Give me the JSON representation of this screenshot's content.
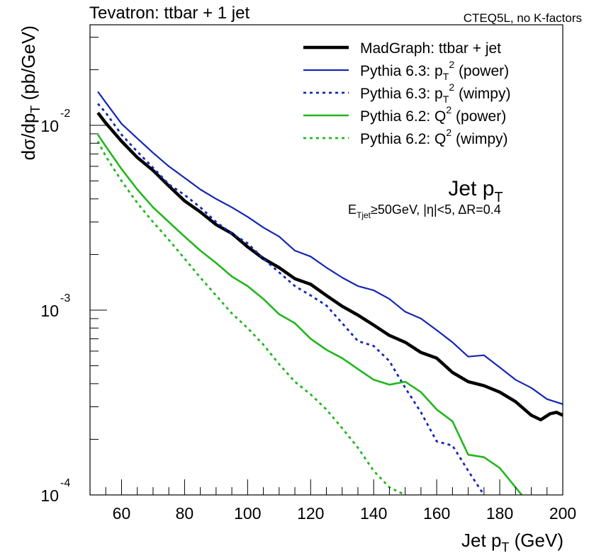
{
  "chart_data": {
    "type": "line",
    "title": "Tevatron: ttbar + 1 jet",
    "subtitle": "CTEQ5L, no K-factors",
    "xlabel": {
      "main": "Jet p",
      "sub": "T",
      "unit": " (GeV)"
    },
    "ylabel": {
      "main": "dσ/dp",
      "sub": "T",
      "unit": " (pb/GeV)"
    },
    "x_ticks": [
      60,
      80,
      100,
      120,
      140,
      160,
      180,
      200
    ],
    "y_ticks": [
      {
        "base": "10",
        "exp": "-2",
        "value": 0.01
      },
      {
        "base": "10",
        "exp": "-3",
        "value": 0.001
      },
      {
        "base": "10",
        "exp": "-4",
        "value": 0.0001
      }
    ],
    "xlim": [
      50,
      200
    ],
    "ylim": [
      0.0001,
      0.035
    ],
    "yscale": "log",
    "grid": false,
    "legend_position": "top-right",
    "annotation": {
      "title_main": "Jet p",
      "title_sub": "T",
      "cuts_E": "E",
      "cuts_E_sub": "Tjet",
      "cuts_rest": "≥50GeV, |η|<5, ΔR=0.4"
    },
    "series": [
      {
        "legend": [
          "MadGraph: ttbar + jet"
        ],
        "color": "#000000",
        "width": 4.5,
        "dash": "",
        "points": [
          [
            52.5,
            0.0117
          ],
          [
            55,
            0.0103
          ],
          [
            60,
            0.0082
          ],
          [
            65,
            0.0067
          ],
          [
            70,
            0.0057
          ],
          [
            75,
            0.0047
          ],
          [
            80,
            0.0039
          ],
          [
            85,
            0.0034
          ],
          [
            90,
            0.0029
          ],
          [
            95,
            0.0026
          ],
          [
            100,
            0.0022
          ],
          [
            105,
            0.0019
          ],
          [
            110,
            0.0017
          ],
          [
            115,
            0.00148
          ],
          [
            120,
            0.00138
          ],
          [
            125,
            0.0012
          ],
          [
            130,
            0.00105
          ],
          [
            135,
            0.00094
          ],
          [
            140,
            0.00083
          ],
          [
            145,
            0.00073
          ],
          [
            150,
            0.00067
          ],
          [
            155,
            0.00059
          ],
          [
            160,
            0.00055
          ],
          [
            165,
            0.00046
          ],
          [
            170,
            0.00041
          ],
          [
            175,
            0.00039
          ],
          [
            180,
            0.00036
          ],
          [
            185,
            0.00032
          ],
          [
            190,
            0.00027
          ],
          [
            193,
            0.000255
          ],
          [
            196,
            0.000275
          ],
          [
            198,
            0.00028
          ],
          [
            200,
            0.00027
          ]
        ]
      },
      {
        "legend": [
          "Pythia 6.3: p",
          "T",
          "2",
          " (power)"
        ],
        "color": "#1426b5",
        "width": 2.2,
        "dash": "",
        "points": [
          [
            52.5,
            0.0152
          ],
          [
            55,
            0.0133
          ],
          [
            60,
            0.0102
          ],
          [
            65,
            0.0085
          ],
          [
            70,
            0.0071
          ],
          [
            75,
            0.006
          ],
          [
            80,
            0.0052
          ],
          [
            85,
            0.0045
          ],
          [
            90,
            0.004
          ],
          [
            95,
            0.0036
          ],
          [
            100,
            0.0032
          ],
          [
            105,
            0.0028
          ],
          [
            110,
            0.0025
          ],
          [
            115,
            0.0021
          ],
          [
            120,
            0.00195
          ],
          [
            125,
            0.0017
          ],
          [
            130,
            0.0015
          ],
          [
            135,
            0.00135
          ],
          [
            140,
            0.00128
          ],
          [
            145,
            0.00115
          ],
          [
            150,
            0.00098
          ],
          [
            155,
            0.0009
          ],
          [
            160,
            0.00078
          ],
          [
            165,
            0.00067
          ],
          [
            170,
            0.00056
          ],
          [
            175,
            0.00057
          ],
          [
            180,
            0.00049
          ],
          [
            185,
            0.00042
          ],
          [
            190,
            0.00038
          ],
          [
            195,
            0.00033
          ],
          [
            200,
            0.00031
          ]
        ]
      },
      {
        "legend": [
          "Pythia 6.3: p",
          "T",
          "2",
          " (wimpy)"
        ],
        "color": "#1426b5",
        "width": 2.8,
        "dash": "4 5",
        "points": [
          [
            52.5,
            0.0131
          ],
          [
            55,
            0.0117
          ],
          [
            60,
            0.0089
          ],
          [
            65,
            0.0072
          ],
          [
            70,
            0.0059
          ],
          [
            75,
            0.0048
          ],
          [
            80,
            0.0042
          ],
          [
            85,
            0.0036
          ],
          [
            90,
            0.003
          ],
          [
            95,
            0.0026
          ],
          [
            100,
            0.0023
          ],
          [
            105,
            0.0019
          ],
          [
            110,
            0.0016
          ],
          [
            115,
            0.00135
          ],
          [
            120,
            0.0012
          ],
          [
            125,
            0.00106
          ],
          [
            130,
            0.00085
          ],
          [
            135,
            0.00068
          ],
          [
            140,
            0.00064
          ],
          [
            145,
            0.00053
          ],
          [
            150,
            0.00038
          ],
          [
            155,
            0.00028
          ],
          [
            160,
            0.000195
          ],
          [
            165,
            0.000185
          ],
          [
            170,
            0.000135
          ],
          [
            175,
            0.0001
          ]
        ]
      },
      {
        "legend": [
          "Pythia 6.2: Q",
          "",
          "2",
          " (power)"
        ],
        "color": "#22b61e",
        "width": 2.6,
        "dash": "",
        "points": [
          [
            52.5,
            0.0089
          ],
          [
            55,
            0.0077
          ],
          [
            60,
            0.0058
          ],
          [
            65,
            0.0045
          ],
          [
            70,
            0.0036
          ],
          [
            75,
            0.003
          ],
          [
            80,
            0.0025
          ],
          [
            85,
            0.0021
          ],
          [
            90,
            0.0018
          ],
          [
            95,
            0.00152
          ],
          [
            100,
            0.00135
          ],
          [
            105,
            0.00115
          ],
          [
            110,
            0.00095
          ],
          [
            115,
            0.00085
          ],
          [
            120,
            0.0007
          ],
          [
            125,
            0.00061
          ],
          [
            130,
            0.00055
          ],
          [
            135,
            0.00048
          ],
          [
            140,
            0.00042
          ],
          [
            145,
            0.000395
          ],
          [
            150,
            0.00041
          ],
          [
            155,
            0.00036
          ],
          [
            160,
            0.00029
          ],
          [
            165,
            0.00025
          ],
          [
            170,
            0.000165
          ],
          [
            175,
            0.00016
          ],
          [
            180,
            0.00014
          ],
          [
            185,
            0.00011
          ],
          [
            187,
            0.0001
          ]
        ]
      },
      {
        "legend": [
          "Pythia 6.2: Q",
          "",
          "2",
          " (wimpy)"
        ],
        "color": "#22b61e",
        "width": 2.8,
        "dash": "4 5",
        "points": [
          [
            52.5,
            0.0082
          ],
          [
            55,
            0.0068
          ],
          [
            60,
            0.005
          ],
          [
            65,
            0.0038
          ],
          [
            70,
            0.003
          ],
          [
            75,
            0.0024
          ],
          [
            80,
            0.0019
          ],
          [
            85,
            0.0015
          ],
          [
            90,
            0.0012
          ],
          [
            95,
            0.00096
          ],
          [
            100,
            0.0008
          ],
          [
            105,
            0.00065
          ],
          [
            110,
            0.00051
          ],
          [
            115,
            0.00041
          ],
          [
            120,
            0.00035
          ],
          [
            125,
            0.00029
          ],
          [
            130,
            0.00023
          ],
          [
            135,
            0.00018
          ],
          [
            140,
            0.000135
          ],
          [
            145,
            0.00011
          ],
          [
            150,
            0.0001
          ]
        ]
      }
    ]
  }
}
